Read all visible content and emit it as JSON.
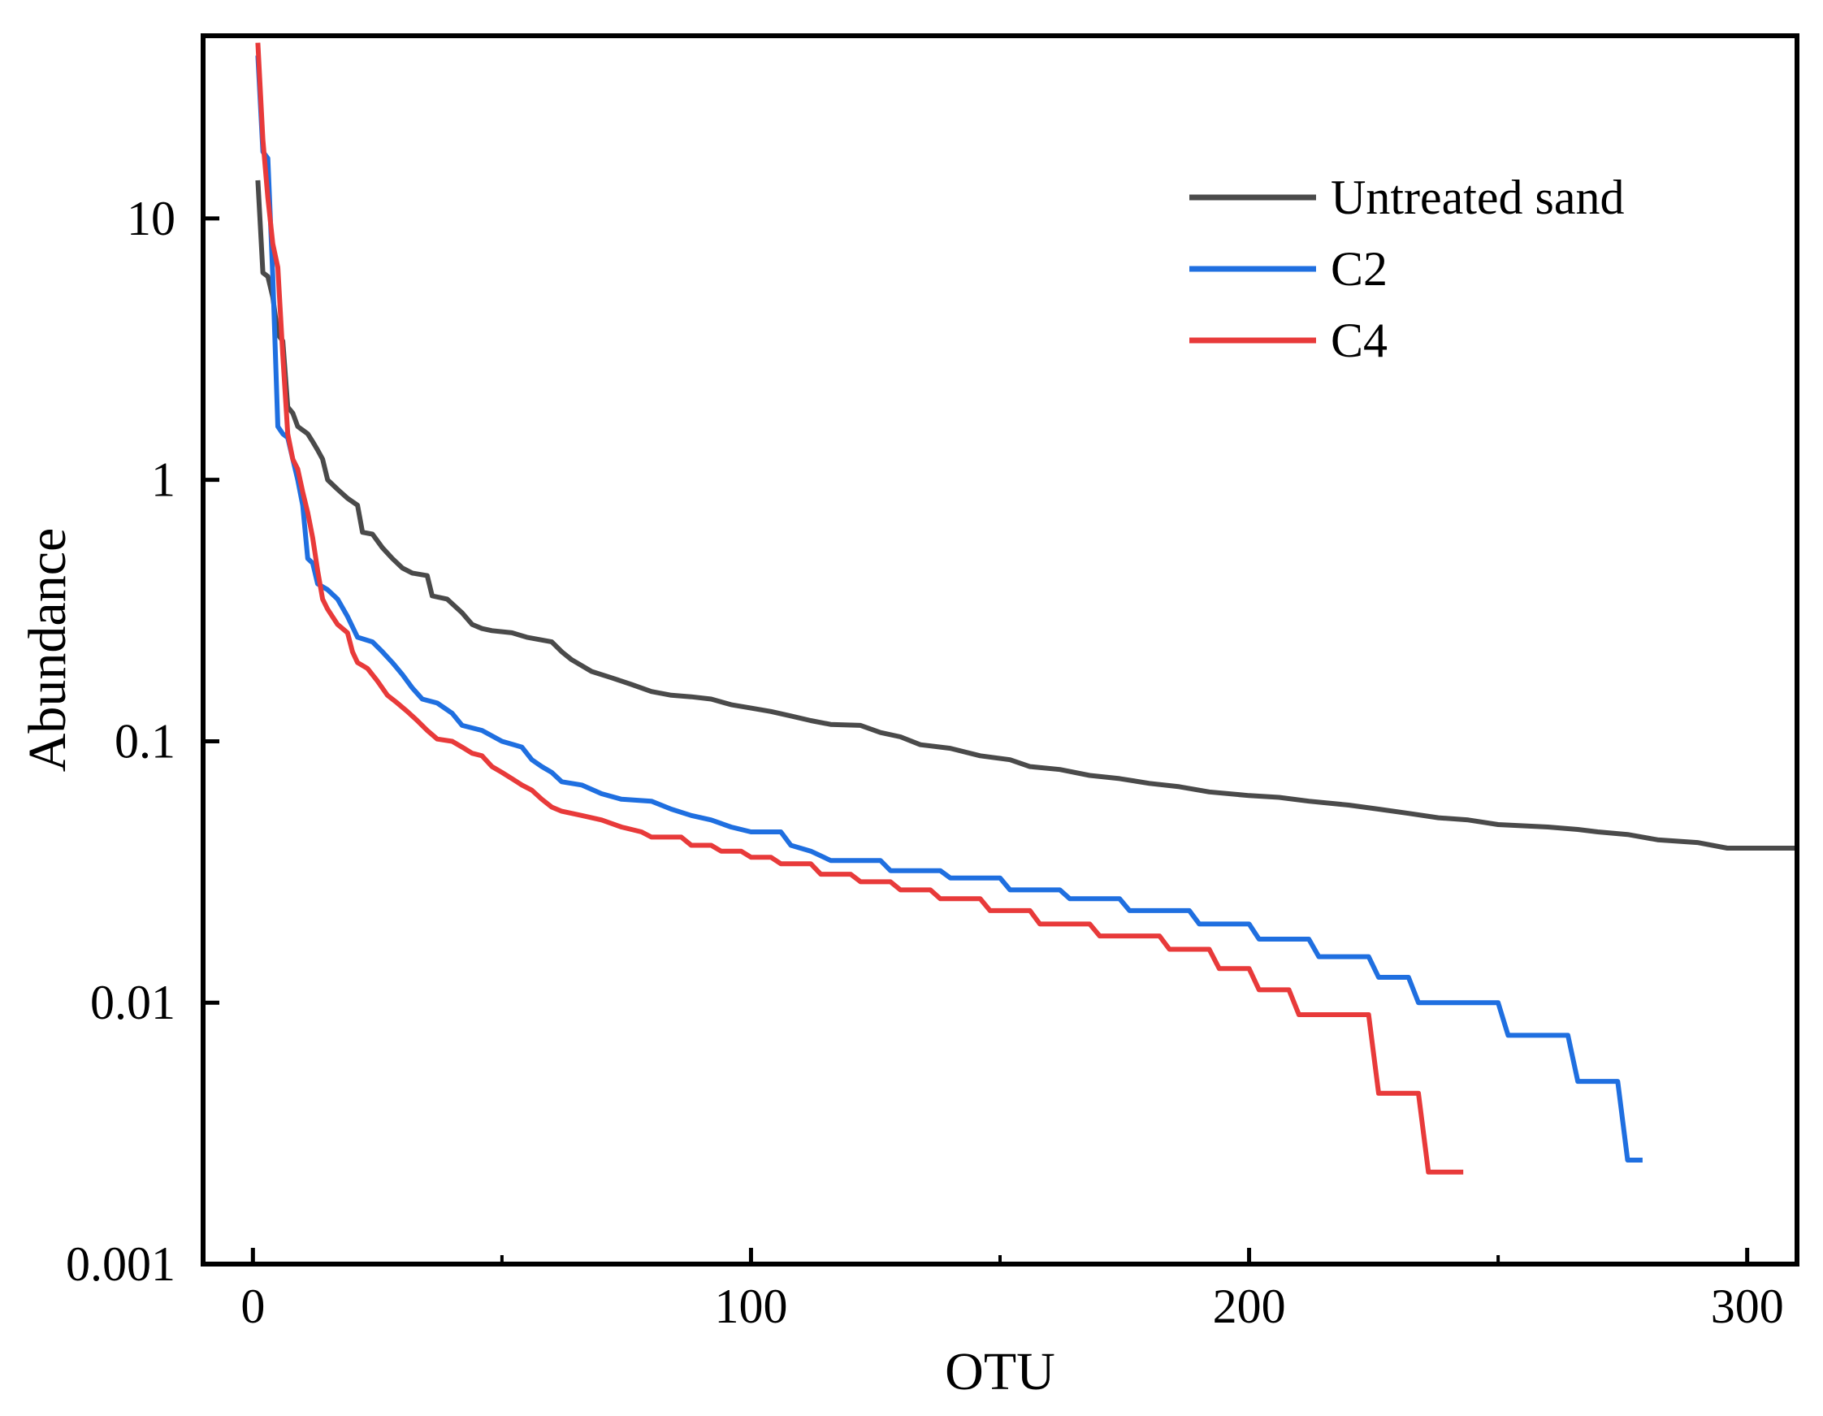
{
  "chart_data": {
    "type": "line",
    "title": "",
    "xlabel": "OTU",
    "ylabel": "Abundance",
    "xlim": [
      -10,
      310
    ],
    "ylim": [
      0.001,
      50
    ],
    "yscale": "log",
    "grid": false,
    "legend_position": "top-right",
    "xticks": [
      0,
      100,
      200,
      300
    ],
    "xtick_labels": [
      "0",
      "100",
      "200",
      "300"
    ],
    "yticks": [
      0.001,
      0.01,
      0.1,
      1,
      10
    ],
    "ytick_labels": [
      "0.001",
      "0.01",
      "0.1",
      "1",
      "10"
    ],
    "series": [
      {
        "name": "Untreated sand",
        "color": "#4a4a4a",
        "points": [
          [
            1,
            14
          ],
          [
            2,
            6.2
          ],
          [
            3,
            6.0
          ],
          [
            4,
            5.0
          ],
          [
            5,
            3.6
          ],
          [
            6,
            3.4
          ],
          [
            7,
            1.9
          ],
          [
            8,
            1.8
          ],
          [
            9,
            1.6
          ],
          [
            10,
            1.55
          ],
          [
            11,
            1.5
          ],
          [
            12,
            1.4
          ],
          [
            13,
            1.3
          ],
          [
            14,
            1.2
          ],
          [
            15,
            1.0
          ],
          [
            17,
            0.92
          ],
          [
            19,
            0.85
          ],
          [
            21,
            0.8
          ],
          [
            22,
            0.63
          ],
          [
            24,
            0.62
          ],
          [
            26,
            0.55
          ],
          [
            28,
            0.5
          ],
          [
            30,
            0.46
          ],
          [
            32,
            0.44
          ],
          [
            35,
            0.43
          ],
          [
            36,
            0.36
          ],
          [
            39,
            0.35
          ],
          [
            42,
            0.31
          ],
          [
            44,
            0.28
          ],
          [
            46,
            0.27
          ],
          [
            48,
            0.265
          ],
          [
            52,
            0.26
          ],
          [
            55,
            0.25
          ],
          [
            60,
            0.24
          ],
          [
            62,
            0.22
          ],
          [
            64,
            0.205
          ],
          [
            68,
            0.185
          ],
          [
            72,
            0.175
          ],
          [
            76,
            0.165
          ],
          [
            80,
            0.155
          ],
          [
            84,
            0.15
          ],
          [
            88,
            0.148
          ],
          [
            92,
            0.145
          ],
          [
            96,
            0.138
          ],
          [
            100,
            0.134
          ],
          [
            104,
            0.13
          ],
          [
            108,
            0.125
          ],
          [
            112,
            0.12
          ],
          [
            116,
            0.116
          ],
          [
            122,
            0.115
          ],
          [
            126,
            0.108
          ],
          [
            130,
            0.104
          ],
          [
            134,
            0.097
          ],
          [
            140,
            0.094
          ],
          [
            146,
            0.088
          ],
          [
            152,
            0.085
          ],
          [
            156,
            0.08
          ],
          [
            162,
            0.078
          ],
          [
            168,
            0.074
          ],
          [
            174,
            0.072
          ],
          [
            180,
            0.069
          ],
          [
            186,
            0.067
          ],
          [
            192,
            0.064
          ],
          [
            200,
            0.062
          ],
          [
            206,
            0.061
          ],
          [
            212,
            0.059
          ],
          [
            220,
            0.057
          ],
          [
            226,
            0.055
          ],
          [
            232,
            0.053
          ],
          [
            238,
            0.051
          ],
          [
            244,
            0.05
          ],
          [
            250,
            0.048
          ],
          [
            260,
            0.047
          ],
          [
            266,
            0.046
          ],
          [
            270,
            0.045
          ],
          [
            276,
            0.044
          ],
          [
            282,
            0.042
          ],
          [
            290,
            0.041
          ],
          [
            296,
            0.039
          ],
          [
            310,
            0.039
          ]
        ]
      },
      {
        "name": "C2",
        "color": "#1f6fe0",
        "points": [
          [
            1,
            42
          ],
          [
            2,
            18
          ],
          [
            3,
            17
          ],
          [
            4,
            6.0
          ],
          [
            5,
            1.6
          ],
          [
            6,
            1.5
          ],
          [
            7,
            1.45
          ],
          [
            8,
            1.2
          ],
          [
            9,
            1.0
          ],
          [
            10,
            0.8
          ],
          [
            11,
            0.5
          ],
          [
            12,
            0.48
          ],
          [
            13,
            0.4
          ],
          [
            15,
            0.38
          ],
          [
            17,
            0.35
          ],
          [
            19,
            0.3
          ],
          [
            21,
            0.25
          ],
          [
            24,
            0.24
          ],
          [
            26,
            0.22
          ],
          [
            28,
            0.2
          ],
          [
            30,
            0.18
          ],
          [
            32,
            0.16
          ],
          [
            34,
            0.145
          ],
          [
            37,
            0.14
          ],
          [
            40,
            0.128
          ],
          [
            42,
            0.115
          ],
          [
            46,
            0.11
          ],
          [
            50,
            0.1
          ],
          [
            54,
            0.095
          ],
          [
            56,
            0.085
          ],
          [
            58,
            0.08
          ],
          [
            60,
            0.076
          ],
          [
            62,
            0.07
          ],
          [
            66,
            0.068
          ],
          [
            70,
            0.063
          ],
          [
            74,
            0.06
          ],
          [
            80,
            0.059
          ],
          [
            84,
            0.055
          ],
          [
            88,
            0.052
          ],
          [
            92,
            0.05
          ],
          [
            96,
            0.047
          ],
          [
            100,
            0.045
          ],
          [
            106,
            0.045
          ],
          [
            108,
            0.04
          ],
          [
            112,
            0.038
          ],
          [
            116,
            0.035
          ],
          [
            126,
            0.035
          ],
          [
            128,
            0.032
          ],
          [
            138,
            0.032
          ],
          [
            140,
            0.03
          ],
          [
            150,
            0.03
          ],
          [
            152,
            0.027
          ],
          [
            162,
            0.027
          ],
          [
            164,
            0.025
          ],
          [
            174,
            0.025
          ],
          [
            176,
            0.0225
          ],
          [
            188,
            0.0225
          ],
          [
            190,
            0.02
          ],
          [
            200,
            0.02
          ],
          [
            202,
            0.0175
          ],
          [
            212,
            0.0175
          ],
          [
            214,
            0.015
          ],
          [
            224,
            0.015
          ],
          [
            226,
            0.0125
          ],
          [
            232,
            0.0125
          ],
          [
            234,
            0.01
          ],
          [
            250,
            0.01
          ],
          [
            252,
            0.0075
          ],
          [
            264,
            0.0075
          ],
          [
            266,
            0.005
          ],
          [
            274,
            0.005
          ],
          [
            276,
            0.0025
          ],
          [
            279,
            0.0025
          ]
        ]
      },
      {
        "name": "C4",
        "color": "#e83a3a",
        "points": [
          [
            1,
            47
          ],
          [
            2,
            20
          ],
          [
            3,
            12
          ],
          [
            4,
            8.0
          ],
          [
            5,
            6.5
          ],
          [
            6,
            3.0
          ],
          [
            7,
            1.5
          ],
          [
            8,
            1.2
          ],
          [
            9,
            1.1
          ],
          [
            10,
            0.9
          ],
          [
            11,
            0.75
          ],
          [
            12,
            0.6
          ],
          [
            13,
            0.45
          ],
          [
            14,
            0.35
          ],
          [
            15,
            0.32
          ],
          [
            17,
            0.28
          ],
          [
            19,
            0.26
          ],
          [
            20,
            0.22
          ],
          [
            21,
            0.2
          ],
          [
            23,
            0.19
          ],
          [
            25,
            0.17
          ],
          [
            27,
            0.15
          ],
          [
            29,
            0.14
          ],
          [
            31,
            0.13
          ],
          [
            33,
            0.12
          ],
          [
            35,
            0.11
          ],
          [
            37,
            0.102
          ],
          [
            40,
            0.1
          ],
          [
            42,
            0.095
          ],
          [
            44,
            0.09
          ],
          [
            46,
            0.088
          ],
          [
            48,
            0.08
          ],
          [
            50,
            0.076
          ],
          [
            52,
            0.072
          ],
          [
            54,
            0.068
          ],
          [
            56,
            0.065
          ],
          [
            58,
            0.06
          ],
          [
            60,
            0.056
          ],
          [
            62,
            0.054
          ],
          [
            66,
            0.052
          ],
          [
            70,
            0.05
          ],
          [
            74,
            0.047
          ],
          [
            78,
            0.045
          ],
          [
            80,
            0.043
          ],
          [
            86,
            0.043
          ],
          [
            88,
            0.04
          ],
          [
            92,
            0.04
          ],
          [
            94,
            0.038
          ],
          [
            98,
            0.038
          ],
          [
            100,
            0.036
          ],
          [
            104,
            0.036
          ],
          [
            106,
            0.034
          ],
          [
            112,
            0.034
          ],
          [
            114,
            0.031
          ],
          [
            120,
            0.031
          ],
          [
            122,
            0.029
          ],
          [
            128,
            0.029
          ],
          [
            130,
            0.027
          ],
          [
            136,
            0.027
          ],
          [
            138,
            0.025
          ],
          [
            146,
            0.025
          ],
          [
            148,
            0.0225
          ],
          [
            156,
            0.0225
          ],
          [
            158,
            0.02
          ],
          [
            168,
            0.02
          ],
          [
            170,
            0.018
          ],
          [
            182,
            0.018
          ],
          [
            184,
            0.016
          ],
          [
            192,
            0.016
          ],
          [
            194,
            0.0135
          ],
          [
            200,
            0.0135
          ],
          [
            202,
            0.0112
          ],
          [
            208,
            0.0112
          ],
          [
            210,
            0.009
          ],
          [
            224,
            0.009
          ],
          [
            226,
            0.0045
          ],
          [
            234,
            0.0045
          ],
          [
            236,
            0.00225
          ],
          [
            243,
            0.00225
          ]
        ]
      }
    ]
  }
}
